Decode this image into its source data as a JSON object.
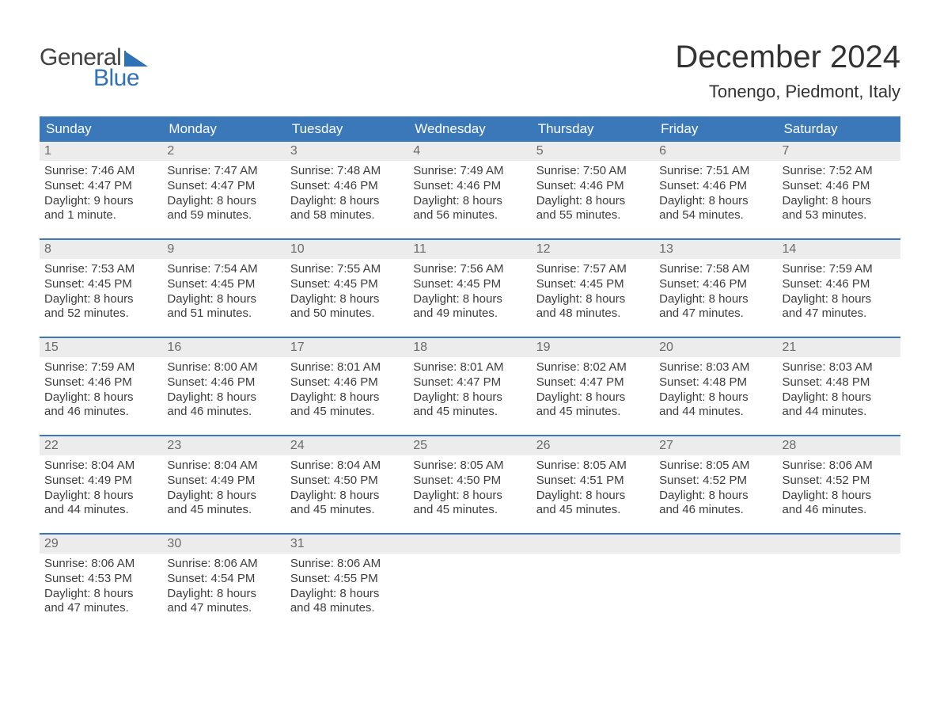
{
  "logo": {
    "line1": "General",
    "line2": "Blue",
    "brand_color": "#2f72b6"
  },
  "title": "December 2024",
  "subtitle": "Tonengo, Piedmont, Italy",
  "colors": {
    "header_bg": "#3a78b9",
    "header_text": "#ffffff",
    "daynum_bg": "#ececec",
    "daynum_text": "#6a6a6a",
    "body_text": "#3d3d3d",
    "week_border": "#3a78b9",
    "page_bg": "#ffffff"
  },
  "weekdays": [
    "Sunday",
    "Monday",
    "Tuesday",
    "Wednesday",
    "Thursday",
    "Friday",
    "Saturday"
  ],
  "weeks": [
    [
      {
        "n": "1",
        "sr": "Sunrise: 7:46 AM",
        "ss": "Sunset: 4:47 PM",
        "d1": "Daylight: 9 hours",
        "d2": "and 1 minute."
      },
      {
        "n": "2",
        "sr": "Sunrise: 7:47 AM",
        "ss": "Sunset: 4:47 PM",
        "d1": "Daylight: 8 hours",
        "d2": "and 59 minutes."
      },
      {
        "n": "3",
        "sr": "Sunrise: 7:48 AM",
        "ss": "Sunset: 4:46 PM",
        "d1": "Daylight: 8 hours",
        "d2": "and 58 minutes."
      },
      {
        "n": "4",
        "sr": "Sunrise: 7:49 AM",
        "ss": "Sunset: 4:46 PM",
        "d1": "Daylight: 8 hours",
        "d2": "and 56 minutes."
      },
      {
        "n": "5",
        "sr": "Sunrise: 7:50 AM",
        "ss": "Sunset: 4:46 PM",
        "d1": "Daylight: 8 hours",
        "d2": "and 55 minutes."
      },
      {
        "n": "6",
        "sr": "Sunrise: 7:51 AM",
        "ss": "Sunset: 4:46 PM",
        "d1": "Daylight: 8 hours",
        "d2": "and 54 minutes."
      },
      {
        "n": "7",
        "sr": "Sunrise: 7:52 AM",
        "ss": "Sunset: 4:46 PM",
        "d1": "Daylight: 8 hours",
        "d2": "and 53 minutes."
      }
    ],
    [
      {
        "n": "8",
        "sr": "Sunrise: 7:53 AM",
        "ss": "Sunset: 4:45 PM",
        "d1": "Daylight: 8 hours",
        "d2": "and 52 minutes."
      },
      {
        "n": "9",
        "sr": "Sunrise: 7:54 AM",
        "ss": "Sunset: 4:45 PM",
        "d1": "Daylight: 8 hours",
        "d2": "and 51 minutes."
      },
      {
        "n": "10",
        "sr": "Sunrise: 7:55 AM",
        "ss": "Sunset: 4:45 PM",
        "d1": "Daylight: 8 hours",
        "d2": "and 50 minutes."
      },
      {
        "n": "11",
        "sr": "Sunrise: 7:56 AM",
        "ss": "Sunset: 4:45 PM",
        "d1": "Daylight: 8 hours",
        "d2": "and 49 minutes."
      },
      {
        "n": "12",
        "sr": "Sunrise: 7:57 AM",
        "ss": "Sunset: 4:45 PM",
        "d1": "Daylight: 8 hours",
        "d2": "and 48 minutes."
      },
      {
        "n": "13",
        "sr": "Sunrise: 7:58 AM",
        "ss": "Sunset: 4:46 PM",
        "d1": "Daylight: 8 hours",
        "d2": "and 47 minutes."
      },
      {
        "n": "14",
        "sr": "Sunrise: 7:59 AM",
        "ss": "Sunset: 4:46 PM",
        "d1": "Daylight: 8 hours",
        "d2": "and 47 minutes."
      }
    ],
    [
      {
        "n": "15",
        "sr": "Sunrise: 7:59 AM",
        "ss": "Sunset: 4:46 PM",
        "d1": "Daylight: 8 hours",
        "d2": "and 46 minutes."
      },
      {
        "n": "16",
        "sr": "Sunrise: 8:00 AM",
        "ss": "Sunset: 4:46 PM",
        "d1": "Daylight: 8 hours",
        "d2": "and 46 minutes."
      },
      {
        "n": "17",
        "sr": "Sunrise: 8:01 AM",
        "ss": "Sunset: 4:46 PM",
        "d1": "Daylight: 8 hours",
        "d2": "and 45 minutes."
      },
      {
        "n": "18",
        "sr": "Sunrise: 8:01 AM",
        "ss": "Sunset: 4:47 PM",
        "d1": "Daylight: 8 hours",
        "d2": "and 45 minutes."
      },
      {
        "n": "19",
        "sr": "Sunrise: 8:02 AM",
        "ss": "Sunset: 4:47 PM",
        "d1": "Daylight: 8 hours",
        "d2": "and 45 minutes."
      },
      {
        "n": "20",
        "sr": "Sunrise: 8:03 AM",
        "ss": "Sunset: 4:48 PM",
        "d1": "Daylight: 8 hours",
        "d2": "and 44 minutes."
      },
      {
        "n": "21",
        "sr": "Sunrise: 8:03 AM",
        "ss": "Sunset: 4:48 PM",
        "d1": "Daylight: 8 hours",
        "d2": "and 44 minutes."
      }
    ],
    [
      {
        "n": "22",
        "sr": "Sunrise: 8:04 AM",
        "ss": "Sunset: 4:49 PM",
        "d1": "Daylight: 8 hours",
        "d2": "and 44 minutes."
      },
      {
        "n": "23",
        "sr": "Sunrise: 8:04 AM",
        "ss": "Sunset: 4:49 PM",
        "d1": "Daylight: 8 hours",
        "d2": "and 45 minutes."
      },
      {
        "n": "24",
        "sr": "Sunrise: 8:04 AM",
        "ss": "Sunset: 4:50 PM",
        "d1": "Daylight: 8 hours",
        "d2": "and 45 minutes."
      },
      {
        "n": "25",
        "sr": "Sunrise: 8:05 AM",
        "ss": "Sunset: 4:50 PM",
        "d1": "Daylight: 8 hours",
        "d2": "and 45 minutes."
      },
      {
        "n": "26",
        "sr": "Sunrise: 8:05 AM",
        "ss": "Sunset: 4:51 PM",
        "d1": "Daylight: 8 hours",
        "d2": "and 45 minutes."
      },
      {
        "n": "27",
        "sr": "Sunrise: 8:05 AM",
        "ss": "Sunset: 4:52 PM",
        "d1": "Daylight: 8 hours",
        "d2": "and 46 minutes."
      },
      {
        "n": "28",
        "sr": "Sunrise: 8:06 AM",
        "ss": "Sunset: 4:52 PM",
        "d1": "Daylight: 8 hours",
        "d2": "and 46 minutes."
      }
    ],
    [
      {
        "n": "29",
        "sr": "Sunrise: 8:06 AM",
        "ss": "Sunset: 4:53 PM",
        "d1": "Daylight: 8 hours",
        "d2": "and 47 minutes."
      },
      {
        "n": "30",
        "sr": "Sunrise: 8:06 AM",
        "ss": "Sunset: 4:54 PM",
        "d1": "Daylight: 8 hours",
        "d2": "and 47 minutes."
      },
      {
        "n": "31",
        "sr": "Sunrise: 8:06 AM",
        "ss": "Sunset: 4:55 PM",
        "d1": "Daylight: 8 hours",
        "d2": "and 48 minutes."
      },
      null,
      null,
      null,
      null
    ]
  ]
}
